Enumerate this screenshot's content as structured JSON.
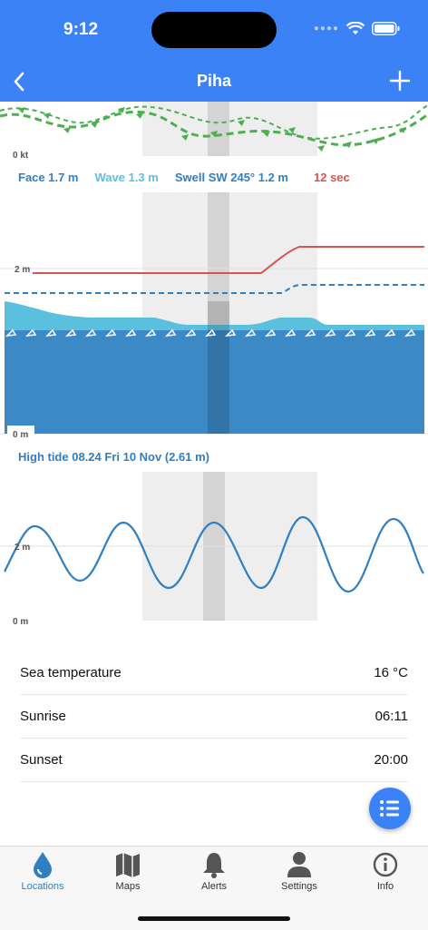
{
  "status_bar": {
    "time": "9:12"
  },
  "nav": {
    "title": "Piha"
  },
  "wind": {
    "axis_zero": "0 kt"
  },
  "legend": {
    "face": "Face 1.7 m",
    "wave": "Wave 1.3 m",
    "swell": "Swell SW 245° 1.2 m",
    "period": "12 sec"
  },
  "wave_chart": {
    "axis_2m": "2 m",
    "axis_0m": "0 m"
  },
  "tide": {
    "title": "High tide 08.24 Fri 10 Nov (2.61 m)",
    "axis_2m": "2 m",
    "axis_0m": "0 m"
  },
  "info": [
    {
      "label": "Sea temperature",
      "value": "16 °C"
    },
    {
      "label": "Sunrise",
      "value": "06:11"
    },
    {
      "label": "Sunset",
      "value": "20:00"
    }
  ],
  "tabs": [
    {
      "label": "Locations",
      "icon": "drop-icon"
    },
    {
      "label": "Maps",
      "icon": "map-icon"
    },
    {
      "label": "Alerts",
      "icon": "bell-icon"
    },
    {
      "label": "Settings",
      "icon": "person-icon"
    },
    {
      "label": "Info",
      "icon": "info-icon"
    }
  ],
  "colors": {
    "accent": "#3b82f6",
    "face": "#2f7fc1",
    "wave": "#5bc0de",
    "period": "#d9534f",
    "wind": "#4caf50"
  }
}
